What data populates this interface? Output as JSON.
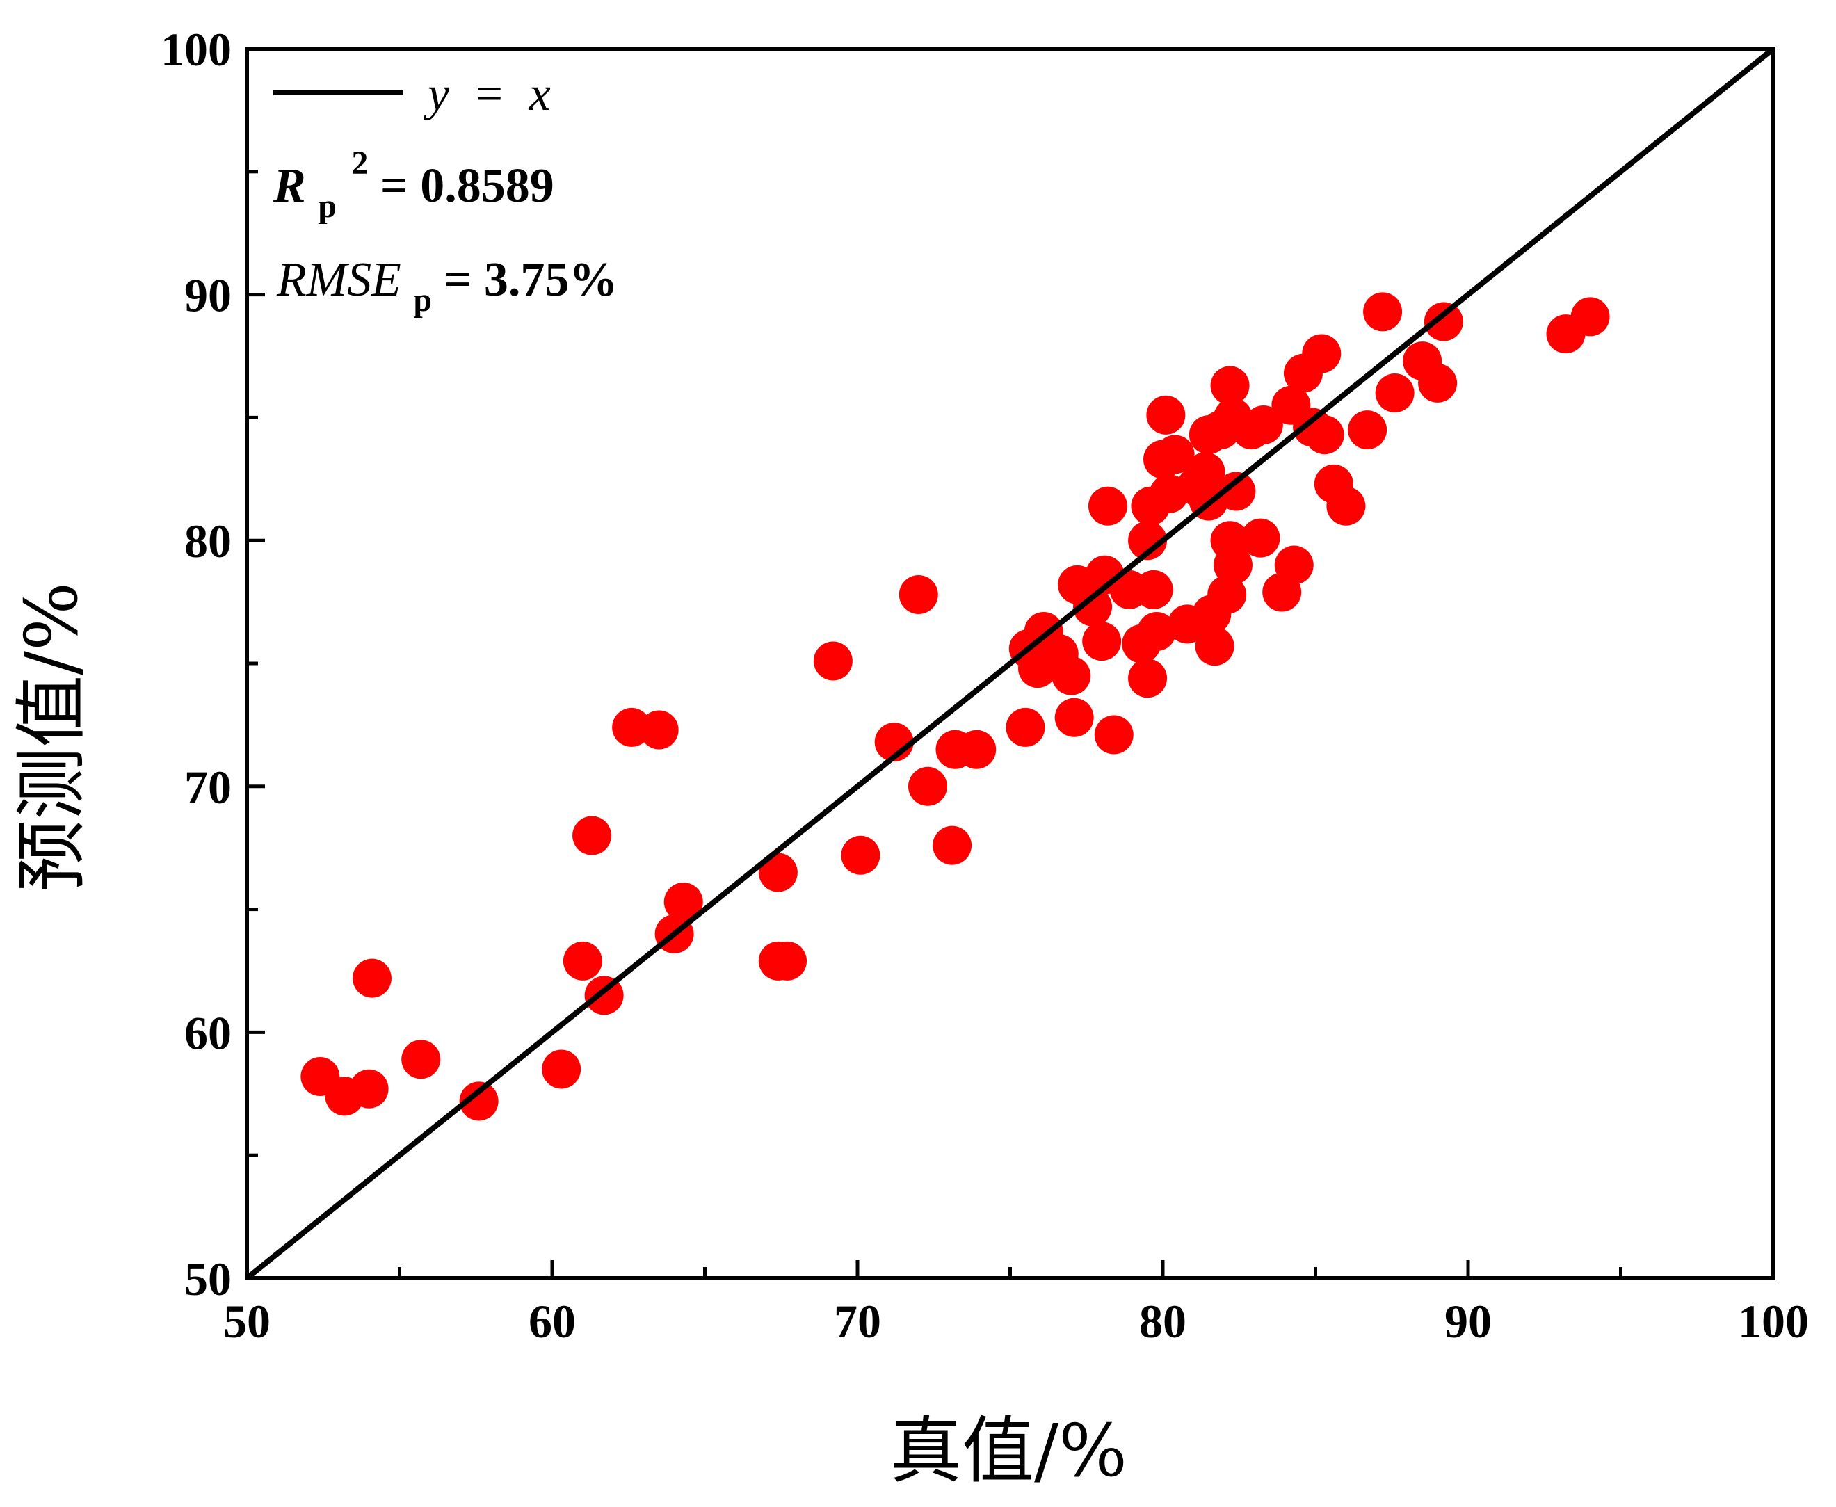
{
  "chart_data": {
    "type": "scatter",
    "xlabel": "真值/%",
    "ylabel": "预测值/%",
    "xlim": [
      50,
      100
    ],
    "ylim": [
      50,
      100
    ],
    "xticks": [
      "50",
      "60",
      "70",
      "80",
      "90",
      "100"
    ],
    "yticks": [
      "50",
      "60",
      "70",
      "80",
      "90",
      "100"
    ],
    "grid": false,
    "legend_position": "top-left",
    "reference_line": {
      "label_y": "y",
      "label_eq": "=",
      "label_x": "x",
      "color": "#000000"
    },
    "point_color": "#ff0000",
    "annotations": {
      "r2_symbol": "R",
      "r2_sub": "p",
      "r2_sup": "2",
      "r2_value": " = 0.8589",
      "rmse_symbol": "RMSE",
      "rmse_sub": "p",
      "rmse_value": " = 3.75%"
    },
    "points": [
      [
        52.4,
        58.2
      ],
      [
        53.2,
        57.4
      ],
      [
        54.0,
        57.7
      ],
      [
        54.1,
        62.2
      ],
      [
        55.7,
        58.9
      ],
      [
        57.6,
        57.2
      ],
      [
        60.3,
        58.5
      ],
      [
        61.0,
        62.9
      ],
      [
        61.3,
        68.0
      ],
      [
        61.7,
        61.5
      ],
      [
        62.6,
        72.4
      ],
      [
        63.5,
        72.3
      ],
      [
        64.0,
        64.0
      ],
      [
        64.3,
        65.3
      ],
      [
        67.4,
        66.5
      ],
      [
        67.4,
        62.9
      ],
      [
        67.7,
        62.9
      ],
      [
        69.2,
        75.1
      ],
      [
        70.1,
        67.2
      ],
      [
        71.2,
        71.8
      ],
      [
        72.0,
        77.8
      ],
      [
        72.3,
        70.0
      ],
      [
        73.1,
        67.6
      ],
      [
        73.2,
        71.5
      ],
      [
        73.9,
        71.5
      ],
      [
        75.5,
        72.4
      ],
      [
        75.6,
        75.6
      ],
      [
        75.9,
        74.8
      ],
      [
        76.1,
        76.3
      ],
      [
        76.6,
        75.4
      ],
      [
        77.0,
        74.5
      ],
      [
        77.1,
        72.8
      ],
      [
        77.2,
        78.2
      ],
      [
        77.7,
        77.3
      ],
      [
        78.0,
        75.9
      ],
      [
        78.1,
        78.6
      ],
      [
        78.2,
        81.4
      ],
      [
        78.4,
        72.1
      ],
      [
        78.9,
        78.0
      ],
      [
        79.3,
        75.8
      ],
      [
        79.5,
        74.4
      ],
      [
        79.5,
        80.0
      ],
      [
        79.6,
        81.4
      ],
      [
        79.7,
        78.0
      ],
      [
        79.8,
        76.3
      ],
      [
        80.0,
        83.3
      ],
      [
        80.1,
        85.1
      ],
      [
        80.2,
        81.9
      ],
      [
        80.4,
        83.5
      ],
      [
        80.8,
        76.6
      ],
      [
        81.1,
        82.2
      ],
      [
        81.4,
        82.8
      ],
      [
        81.5,
        81.6
      ],
      [
        81.5,
        84.3
      ],
      [
        81.6,
        77.0
      ],
      [
        81.7,
        75.7
      ],
      [
        81.9,
        84.5
      ],
      [
        82.1,
        77.8
      ],
      [
        82.2,
        86.3
      ],
      [
        82.2,
        80.0
      ],
      [
        82.3,
        79.0
      ],
      [
        82.3,
        85.0
      ],
      [
        82.4,
        82.0
      ],
      [
        82.9,
        84.5
      ],
      [
        83.2,
        80.1
      ],
      [
        83.3,
        84.7
      ],
      [
        83.9,
        77.9
      ],
      [
        84.2,
        85.5
      ],
      [
        84.3,
        79.0
      ],
      [
        84.6,
        86.8
      ],
      [
        84.9,
        84.6
      ],
      [
        85.2,
        87.6
      ],
      [
        85.3,
        84.3
      ],
      [
        85.6,
        82.3
      ],
      [
        86.0,
        81.4
      ],
      [
        86.7,
        84.5
      ],
      [
        87.2,
        89.3
      ],
      [
        87.6,
        86.0
      ],
      [
        88.5,
        87.3
      ],
      [
        89.0,
        86.4
      ],
      [
        89.2,
        88.9
      ],
      [
        93.2,
        88.4
      ],
      [
        94.0,
        89.1
      ]
    ]
  }
}
